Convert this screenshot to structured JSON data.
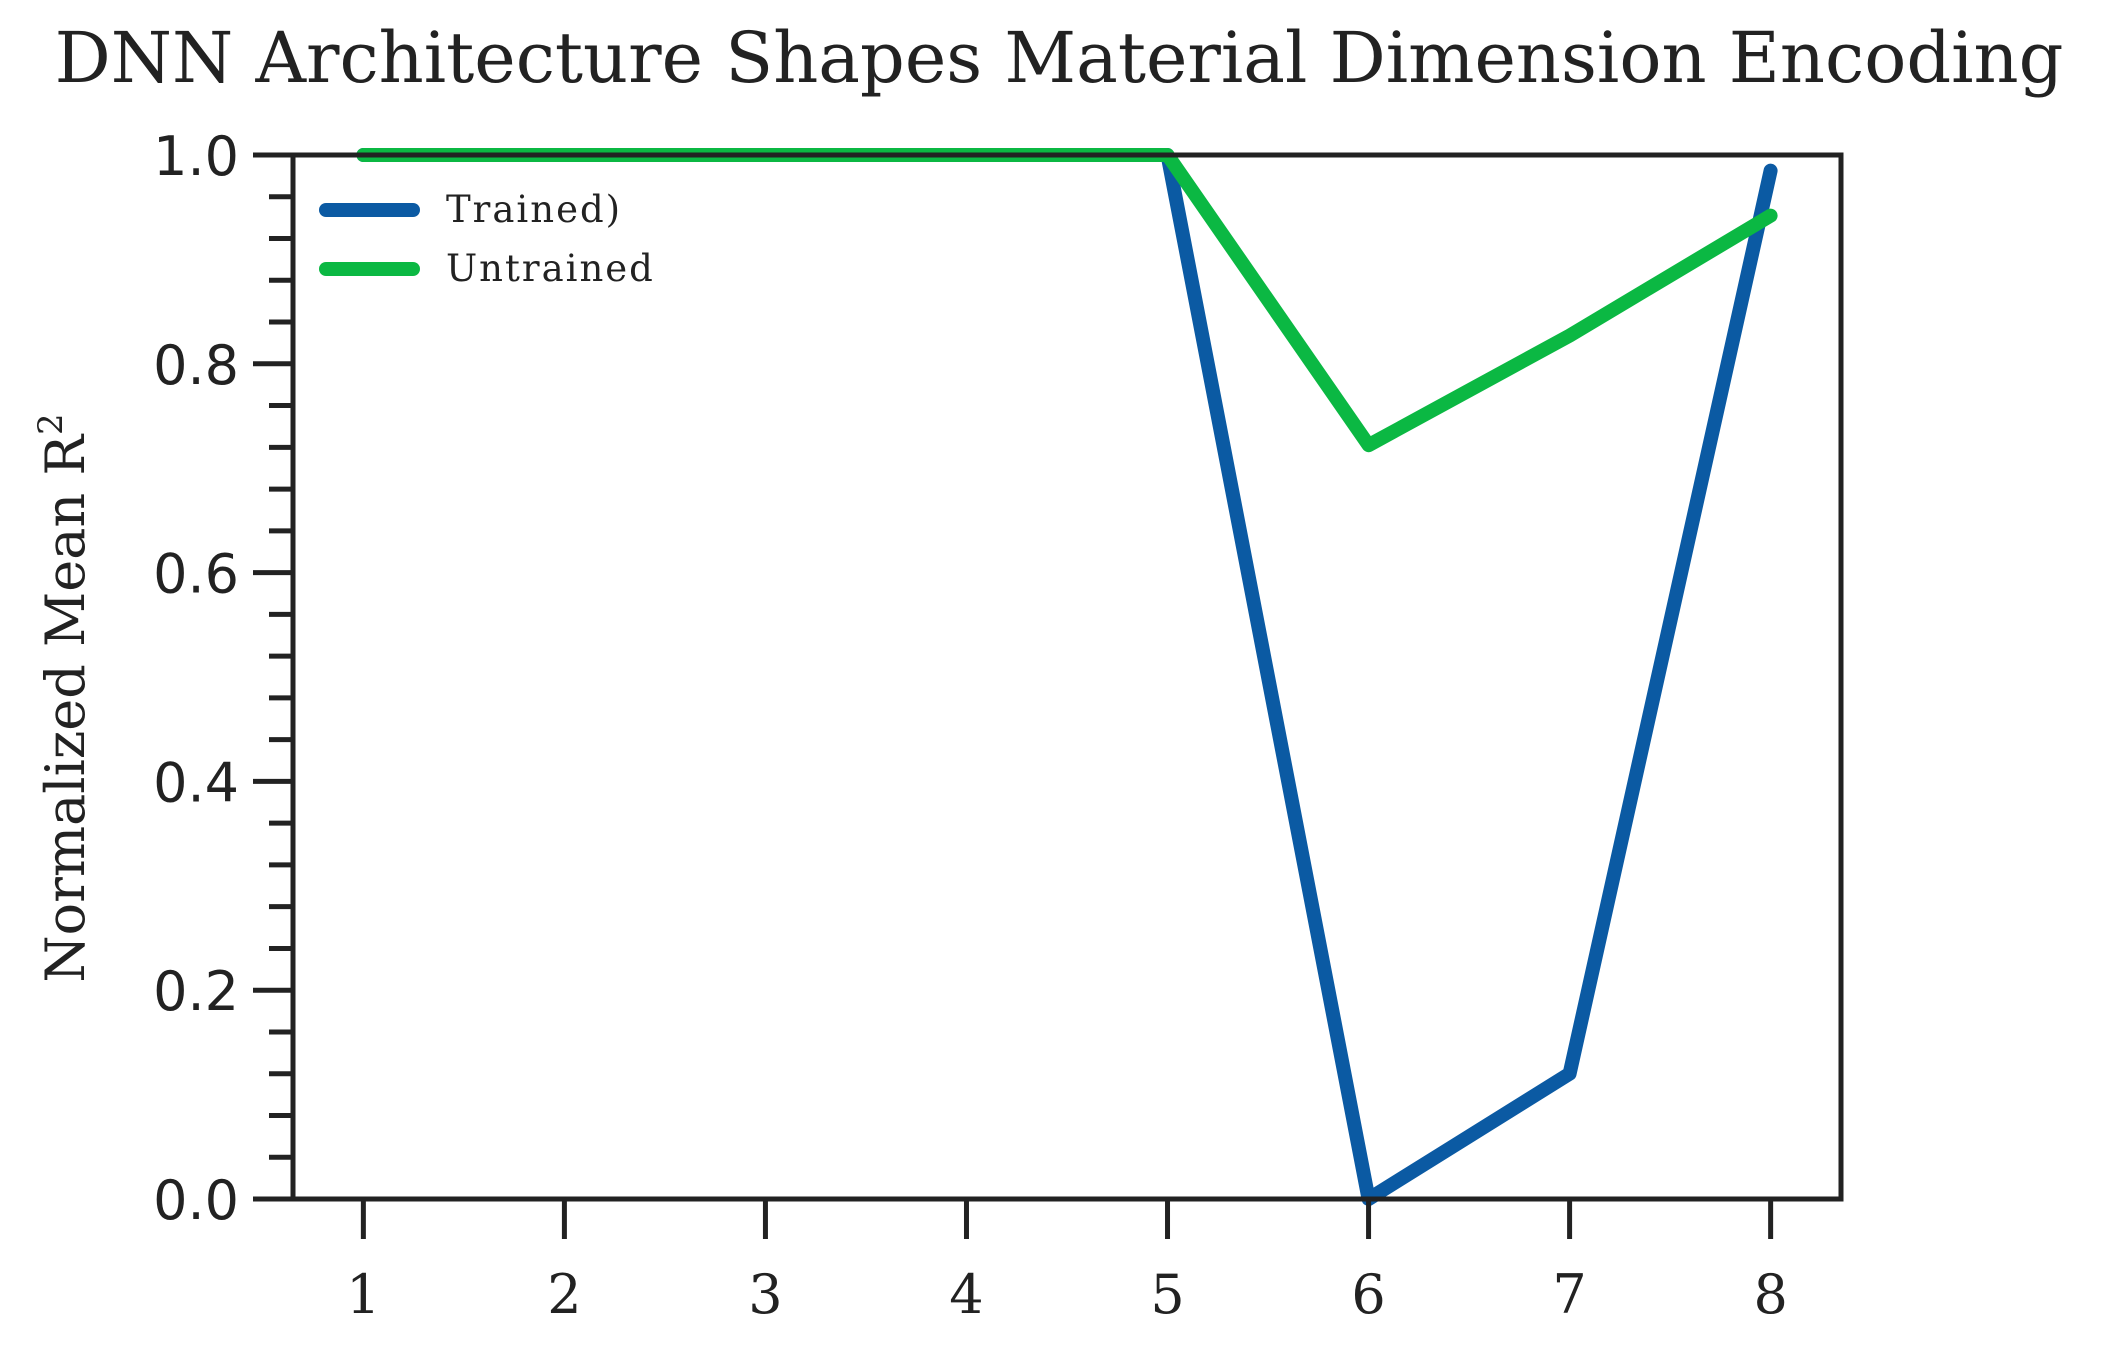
{
  "chart_data": {
    "type": "line",
    "title": "DNN Architecture Shapes Material Dimension Encoding",
    "xlabel": "",
    "ylabel": "Normalized Mean R",
    "ylabel_superscript": "2",
    "x": [
      1,
      2,
      3,
      4,
      5,
      6,
      7,
      8
    ],
    "x_tick_labels": [
      "1",
      "2",
      "3",
      "4",
      "5",
      "6",
      "7",
      "8"
    ],
    "y_tick_labels": [
      "0.0",
      "0.2",
      "0.4",
      "0.6",
      "0.8",
      "1.0"
    ],
    "ylim": [
      0,
      1
    ],
    "xlim": [
      0.65,
      8.35
    ],
    "grid": false,
    "legend_position": "top-left",
    "series": [
      {
        "name": "Trained)",
        "color": "#0b5aa3",
        "values": [
          1.0,
          1.0,
          1.0,
          1.0,
          1.0,
          0.0,
          0.12,
          0.985
        ]
      },
      {
        "name": "Untrained",
        "color": "#0bb843",
        "values": [
          1.0,
          1.0,
          1.0,
          1.0,
          1.0,
          0.722,
          0.827,
          0.942
        ]
      }
    ]
  }
}
